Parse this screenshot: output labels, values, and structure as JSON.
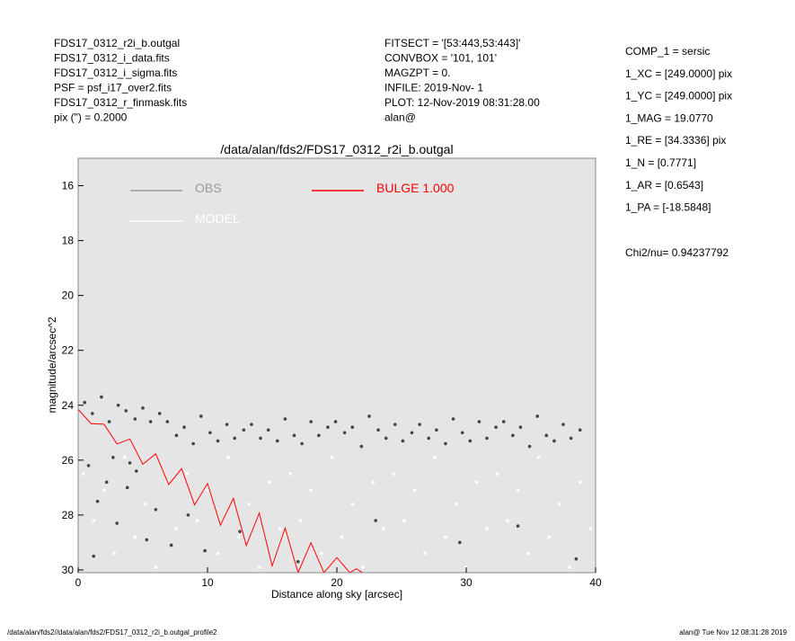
{
  "header": {
    "left": [
      "FDS17_0312_r2i_b.outgal",
      "FDS17_0312_i_data.fits",
      "FDS17_0312_i_sigma.fits",
      "PSF     = psf_i17_over2.fits",
      "FDS17_0312_r_finmask.fits",
      "pix (\") =  0.2000"
    ],
    "middle": [
      "FITSECT = '[53:443,53:443]'",
      "CONVBOX = '101, 101'",
      "MAGZPT  =                 0.",
      "INFILE: 2019-Nov- 1",
      "PLOT: 12-Nov-2019 08:31:28.00",
      "alan@"
    ],
    "right": [
      "COMP_1  = sersic",
      "1_XC    = [249.0000] pix",
      "1_YC    = [249.0000] pix",
      "1_MAG   = 19.0770",
      "1_RE    = [34.3336] pix",
      "1_N     = [0.7771]",
      "1_AR    = [0.6543]",
      "1_PA    = [-18.5848]"
    ],
    "chi2": "Chi2/nu=     0.94237792"
  },
  "footer": {
    "left": "/data/alan/fds2//data/alan/fds2/FDS17_0312_r2i_b.outgal_profile2",
    "right": "alan@  Tue Nov 12 08:31:28 2019"
  },
  "chart_data": {
    "type": "scatter",
    "title": "/data/alan/fds2/FDS17_0312_r2i_b.outgal",
    "x_label": "Distance along sky [arcsec]",
    "y_label": "magnitude/arcsec^2",
    "xlim": [
      0,
      40
    ],
    "ylim": [
      30.1,
      15
    ],
    "xticks": [
      0,
      10,
      20,
      30,
      40
    ],
    "yticks": [
      16,
      18,
      20,
      22,
      24,
      26,
      28,
      30
    ],
    "background": "#e5e5e5",
    "series": [
      {
        "name": "OBS",
        "color": "#444444",
        "legend_color": "#999999",
        "kind": "points",
        "x": [
          0.5,
          1.1,
          1.8,
          2.4,
          3.1,
          3.7,
          4.4,
          5.0,
          5.6,
          6.3,
          6.9,
          7.6,
          8.2,
          8.9,
          9.5,
          10.2,
          10.8,
          11.5,
          12.1,
          12.8,
          13.4,
          14.1,
          14.7,
          15.4,
          16.0,
          16.7,
          17.3,
          18.0,
          18.6,
          19.3,
          19.9,
          20.6,
          21.2,
          21.9,
          22.5,
          23.2,
          23.8,
          24.5,
          25.1,
          25.8,
          26.4,
          27.1,
          27.7,
          28.4,
          29.0,
          29.7,
          30.3,
          31.0,
          31.6,
          32.3,
          32.9,
          33.6,
          34.2,
          34.9,
          35.5,
          36.2,
          36.8,
          37.5,
          38.1,
          38.8,
          0.8,
          1.5,
          2.2,
          3.0,
          3.8,
          4.5,
          5.3,
          6.0,
          7.2,
          8.5,
          1.2,
          2.7,
          4.0,
          9.8,
          12.5,
          17.0,
          23.0,
          29.5,
          34.0,
          38.5
        ],
        "values": [
          23.9,
          24.3,
          23.7,
          24.6,
          24.0,
          24.2,
          24.5,
          24.1,
          24.6,
          24.3,
          24.6,
          25.1,
          24.8,
          25.4,
          24.4,
          25.0,
          25.3,
          24.7,
          25.2,
          24.9,
          24.7,
          25.2,
          24.9,
          25.3,
          24.5,
          25.1,
          25.4,
          24.6,
          25.1,
          24.8,
          24.6,
          25.0,
          24.8,
          25.5,
          24.4,
          24.9,
          25.2,
          24.7,
          25.3,
          25.0,
          24.7,
          25.2,
          24.9,
          25.4,
          24.5,
          25.0,
          25.3,
          24.6,
          25.2,
          24.8,
          24.6,
          25.1,
          24.8,
          25.5,
          24.4,
          25.1,
          25.3,
          24.7,
          25.2,
          24.9,
          26.2,
          27.5,
          26.8,
          28.3,
          27.0,
          26.4,
          28.9,
          27.8,
          29.1,
          28.0,
          29.5,
          25.9,
          26.1,
          29.3,
          28.6,
          29.7,
          28.2,
          29.0,
          28.4,
          29.6
        ]
      },
      {
        "name": "MODEL",
        "color": "#ffffff",
        "kind": "points",
        "x": [
          0.4,
          1.2,
          2.0,
          2.8,
          3.6,
          4.4,
          5.2,
          6.0,
          6.8,
          7.6,
          8.4,
          9.2,
          10.0,
          10.8,
          11.6,
          12.4,
          13.2,
          14.0,
          14.8,
          15.6,
          16.4,
          17.2,
          18.0,
          18.8,
          19.6,
          20.4,
          21.2,
          22.0,
          22.8,
          23.6,
          24.4,
          25.2,
          26.0,
          26.8,
          27.6,
          28.4,
          29.2,
          30.0,
          30.8,
          31.6,
          32.4,
          33.2,
          34.0,
          34.8,
          35.6,
          36.4,
          37.2,
          38.0,
          38.8,
          39.6
        ],
        "values": [
          26.5,
          28.2,
          27.1,
          29.4,
          25.9,
          28.8,
          27.6,
          29.9,
          26.8,
          28.5,
          26.5,
          28.2,
          27.1,
          29.4,
          25.9,
          28.8,
          27.6,
          29.9,
          26.8,
          28.5,
          26.5,
          28.2,
          27.1,
          29.4,
          25.9,
          28.8,
          27.6,
          29.9,
          26.8,
          28.5,
          26.5,
          28.2,
          27.1,
          29.4,
          25.9,
          28.8,
          27.6,
          29.9,
          26.8,
          28.5,
          26.5,
          28.2,
          27.1,
          29.4,
          25.9,
          28.8,
          27.6,
          29.9,
          26.8,
          28.5
        ]
      },
      {
        "name": "BULGE  1.000",
        "color": "#ff0000",
        "kind": "line",
        "x": [
          0,
          1,
          2,
          3,
          4,
          5,
          6,
          7,
          8,
          9,
          10,
          11,
          12,
          13,
          14,
          15,
          16,
          17,
          18,
          19,
          20,
          21,
          21.5,
          22
        ],
        "values": [
          24.15,
          24.67,
          24.69,
          25.41,
          25.23,
          26.15,
          25.77,
          26.89,
          26.31,
          27.63,
          26.85,
          28.37,
          27.39,
          29.11,
          27.93,
          29.85,
          28.47,
          30.1,
          29.01,
          30.1,
          29.55,
          30.1,
          29.96,
          30.1
        ]
      }
    ]
  }
}
